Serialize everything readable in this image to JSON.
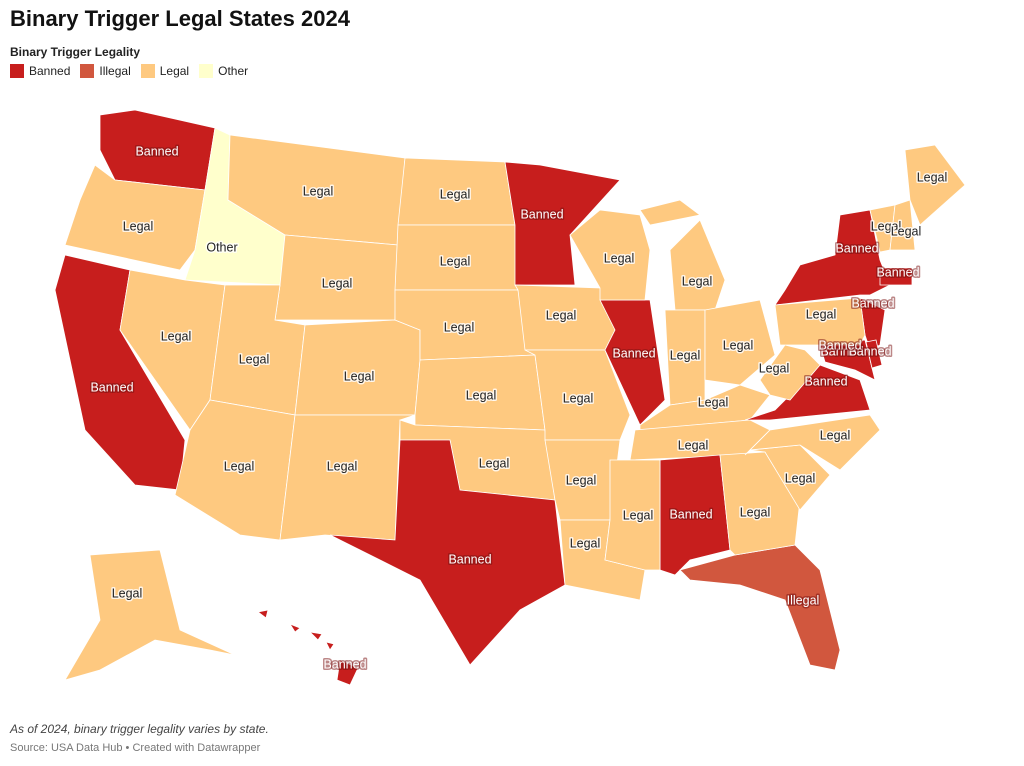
{
  "title": "Binary Trigger Legal States 2024",
  "legend": {
    "title": "Binary Trigger Legality",
    "items": [
      {
        "label": "Banned",
        "color": "#c71e1d"
      },
      {
        "label": "Illegal",
        "color": "#d1573e"
      },
      {
        "label": "Legal",
        "color": "#fec980"
      },
      {
        "label": "Other",
        "color": "#ffffcc"
      }
    ]
  },
  "regions": [
    {
      "label": "Banned"
    },
    {
      "label": "Legal"
    },
    {
      "label": "Banned"
    },
    {
      "label": "Other"
    },
    {
      "label": "Legal"
    },
    {
      "label": "Legal"
    },
    {
      "label": "Legal"
    },
    {
      "label": "Legal"
    },
    {
      "label": "Legal"
    },
    {
      "label": "Legal"
    },
    {
      "label": "Legal"
    },
    {
      "label": "Legal"
    },
    {
      "label": "Legal"
    },
    {
      "label": "Legal"
    },
    {
      "label": "Legal"
    },
    {
      "label": "Legal"
    },
    {
      "label": "Banned"
    },
    {
      "label": "Banned"
    },
    {
      "label": "Legal"
    },
    {
      "label": "Legal"
    },
    {
      "label": "Legal"
    },
    {
      "label": "Legal"
    },
    {
      "label": "Banned"
    },
    {
      "label": "Legal"
    },
    {
      "label": "Legal"
    },
    {
      "label": "Legal"
    },
    {
      "label": "Legal"
    },
    {
      "label": "Legal"
    },
    {
      "label": "Legal"
    },
    {
      "label": "Banned"
    },
    {
      "label": "Legal"
    },
    {
      "label": "Illegal"
    },
    {
      "label": "Legal"
    },
    {
      "label": "Legal"
    },
    {
      "label": "Banned"
    },
    {
      "label": "Legal"
    },
    {
      "label": "Legal"
    },
    {
      "label": "Banned"
    },
    {
      "label": "Banned"
    },
    {
      "label": "Banned"
    },
    {
      "label": "Banned"
    },
    {
      "label": "Legal"
    },
    {
      "label": "Legal"
    },
    {
      "label": "Legal"
    },
    {
      "label": "Legal"
    },
    {
      "label": "Banned"
    },
    {
      "label": "Banned"
    },
    {
      "label": "Legal"
    },
    {
      "label": "Banned"
    }
  ],
  "note": "As of 2024, binary trigger legality varies by state.",
  "source": "Source: USA Data Hub • Created with Datawrapper"
}
